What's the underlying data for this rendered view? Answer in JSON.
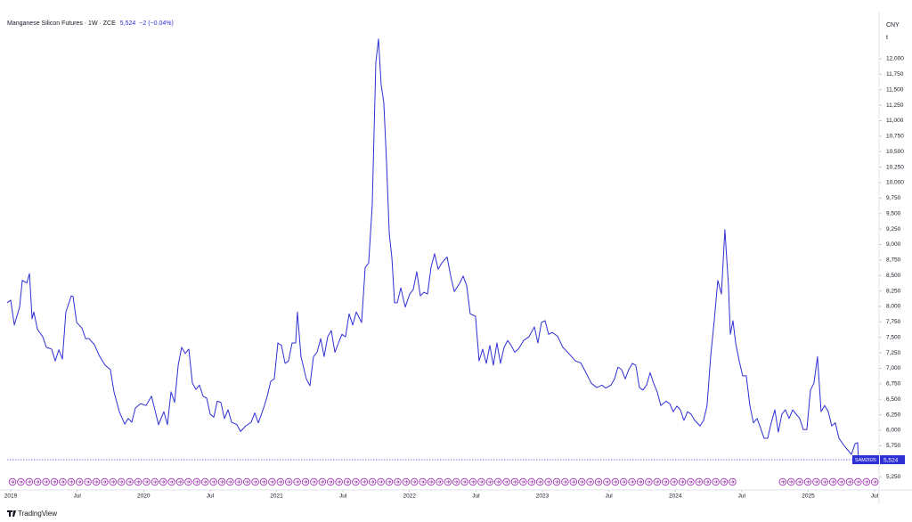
{
  "chart_data": {
    "type": "line",
    "title": "Manganese Silicon Futures · 1W · ZCE",
    "last_price": "5,524",
    "change": "−2 (−0.04%)",
    "symbol_tag": "SAM2025",
    "currency": "CNY",
    "unit": "t",
    "brand": "TradingView",
    "xlim": [
      2018.973,
      2025.533
    ],
    "ylim": [
      5065,
      12690
    ],
    "xticks": [
      {
        "value": 2019,
        "label": "2019"
      },
      {
        "value": 2019.5,
        "label": "Jul"
      },
      {
        "value": 2020,
        "label": "2020"
      },
      {
        "value": 2020.5,
        "label": "Jul"
      },
      {
        "value": 2021,
        "label": "2021"
      },
      {
        "value": 2021.5,
        "label": "Jul"
      },
      {
        "value": 2022,
        "label": "2022"
      },
      {
        "value": 2022.5,
        "label": "Jul"
      },
      {
        "value": 2023,
        "label": "2023"
      },
      {
        "value": 2023.5,
        "label": "Jul"
      },
      {
        "value": 2024,
        "label": "2024"
      },
      {
        "value": 2024.5,
        "label": "Jul"
      },
      {
        "value": 2025,
        "label": "2025"
      },
      {
        "value": 2025.5,
        "label": "Jul"
      }
    ],
    "yticks": [
      {
        "value": 5250,
        "label": "5,250"
      },
      {
        "value": 5500,
        "label": "5,500"
      },
      {
        "value": 5750,
        "label": "5,750"
      },
      {
        "value": 6000,
        "label": "6,000"
      },
      {
        "value": 6250,
        "label": "6,250"
      },
      {
        "value": 6500,
        "label": "6,500"
      },
      {
        "value": 6750,
        "label": "6,750"
      },
      {
        "value": 7000,
        "label": "7,000"
      },
      {
        "value": 7250,
        "label": "7,250"
      },
      {
        "value": 7500,
        "label": "7,500"
      },
      {
        "value": 7750,
        "label": "7,750"
      },
      {
        "value": 8000,
        "label": "8,000"
      },
      {
        "value": 8250,
        "label": "8,250"
      },
      {
        "value": 8500,
        "label": "8,500"
      },
      {
        "value": 8750,
        "label": "8,750"
      },
      {
        "value": 9000,
        "label": "9,000"
      },
      {
        "value": 9250,
        "label": "9,250"
      },
      {
        "value": 9500,
        "label": "9,500"
      },
      {
        "value": 9750,
        "label": "9,750"
      },
      {
        "value": 10000,
        "label": "10,000"
      },
      {
        "value": 10250,
        "label": "10,250"
      },
      {
        "value": 10500,
        "label": "10,500"
      },
      {
        "value": 10750,
        "label": "10,750"
      },
      {
        "value": 11000,
        "label": "11,000"
      },
      {
        "value": 11250,
        "label": "11,250"
      },
      {
        "value": 11500,
        "label": "11,500"
      },
      {
        "value": 11750,
        "label": "11,750"
      },
      {
        "value": 12000,
        "label": "12,000"
      }
    ],
    "grid": false,
    "x": [
      2018.973,
      2019.0,
      2019.027,
      2019.067,
      2019.087,
      2019.121,
      2019.141,
      2019.161,
      2019.174,
      2019.201,
      2019.241,
      2019.268,
      2019.308,
      2019.335,
      2019.362,
      2019.389,
      2019.415,
      2019.456,
      2019.469,
      2019.496,
      2019.536,
      2019.563,
      2019.59,
      2019.63,
      2019.67,
      2019.71,
      2019.75,
      2019.777,
      2019.817,
      2019.858,
      2019.884,
      2019.911,
      2019.938,
      2019.978,
      2020.018,
      2020.059,
      2020.085,
      2020.112,
      2020.152,
      2020.179,
      2020.206,
      2020.233,
      2020.26,
      2020.286,
      2020.313,
      2020.34,
      2020.367,
      2020.394,
      2020.42,
      2020.447,
      2020.474,
      2020.501,
      2020.528,
      2020.554,
      2020.581,
      2020.608,
      2020.635,
      2020.662,
      2020.702,
      2020.729,
      2020.769,
      2020.809,
      2020.836,
      2020.863,
      2020.903,
      2020.93,
      2020.956,
      2020.983,
      2021.01,
      2021.037,
      2021.064,
      2021.09,
      2021.117,
      2021.144,
      2021.157,
      2021.184,
      2021.224,
      2021.251,
      2021.278,
      2021.305,
      2021.332,
      2021.358,
      2021.385,
      2021.412,
      2021.439,
      2021.466,
      2021.492,
      2021.519,
      2021.546,
      2021.573,
      2021.6,
      2021.64,
      2021.667,
      2021.693,
      2021.72,
      2021.747,
      2021.767,
      2021.787,
      2021.807,
      2021.827,
      2021.848,
      2021.868,
      2021.888,
      2021.908,
      2021.935,
      2021.968,
      2022.002,
      2022.028,
      2022.055,
      2022.082,
      2022.109,
      2022.136,
      2022.162,
      2022.189,
      2022.216,
      2022.243,
      2022.283,
      2022.31,
      2022.337,
      2022.377,
      2022.404,
      2022.43,
      2022.457,
      2022.497,
      2022.524,
      2022.551,
      2022.578,
      2022.605,
      2022.631,
      2022.658,
      2022.685,
      2022.712,
      2022.739,
      2022.765,
      2022.792,
      2022.819,
      2022.859,
      2022.899,
      2022.94,
      2022.966,
      2022.993,
      2023.02,
      2023.047,
      2023.074,
      2023.114,
      2023.154,
      2023.208,
      2023.248,
      2023.288,
      2023.328,
      2023.368,
      2023.409,
      2023.449,
      2023.476,
      2023.516,
      2023.543,
      2023.569,
      2023.596,
      2023.623,
      2023.65,
      2023.677,
      2023.703,
      2023.73,
      2023.757,
      2023.784,
      2023.811,
      2023.837,
      2023.864,
      2023.891,
      2023.931,
      2023.958,
      2023.985,
      2024.012,
      2024.038,
      2024.065,
      2024.092,
      2024.119,
      2024.146,
      2024.186,
      2024.213,
      2024.239,
      2024.266,
      2024.293,
      2024.32,
      2024.347,
      2024.373,
      2024.4,
      2024.414,
      2024.434,
      2024.454,
      2024.481,
      2024.507,
      2024.534,
      2024.561,
      2024.588,
      2024.615,
      2024.641,
      2024.668,
      2024.695,
      2024.722,
      2024.749,
      2024.775,
      2024.802,
      2024.829,
      2024.856,
      2024.883,
      2024.909,
      2024.936,
      2024.963,
      2024.99,
      2025.017,
      2025.043,
      2025.07,
      2025.097,
      2025.124,
      2025.151,
      2025.177,
      2025.204,
      2025.231,
      2025.271,
      2025.298,
      2025.325,
      2025.352,
      2025.372,
      2025.378
    ],
    "series": [
      {
        "name": "SAM2025",
        "color": "#2f2fd6",
        "values": [
          8060,
          8100,
          7700,
          7990,
          8420,
          8380,
          8530,
          7800,
          7910,
          7630,
          7510,
          7340,
          7310,
          7120,
          7300,
          7150,
          7910,
          8170,
          8160,
          7740,
          7650,
          7480,
          7480,
          7380,
          7190,
          7050,
          6980,
          6620,
          6300,
          6100,
          6190,
          6130,
          6360,
          6430,
          6400,
          6550,
          6330,
          6090,
          6300,
          6090,
          6620,
          6450,
          7050,
          7340,
          7240,
          7310,
          6760,
          6660,
          6730,
          6550,
          6520,
          6260,
          6210,
          6470,
          6450,
          6190,
          6330,
          6130,
          6090,
          5980,
          6070,
          6130,
          6280,
          6120,
          6360,
          6550,
          6790,
          6830,
          7410,
          7370,
          7080,
          7120,
          7410,
          7410,
          7910,
          7190,
          6830,
          6720,
          7190,
          7260,
          7480,
          7190,
          7510,
          7610,
          7260,
          7410,
          7550,
          7510,
          7880,
          7700,
          7910,
          7740,
          8630,
          8700,
          9640,
          11940,
          12320,
          11580,
          11290,
          10360,
          9180,
          8780,
          8060,
          8060,
          8300,
          7990,
          8200,
          8270,
          8560,
          8170,
          8230,
          8200,
          8630,
          8850,
          8600,
          8700,
          8800,
          8490,
          8240,
          8370,
          8490,
          8340,
          7880,
          7840,
          7120,
          7310,
          7080,
          7370,
          7050,
          7410,
          7080,
          7340,
          7450,
          7370,
          7260,
          7310,
          7450,
          7510,
          7670,
          7410,
          7740,
          7770,
          7550,
          7580,
          7520,
          7340,
          7220,
          7120,
          7090,
          6930,
          6760,
          6690,
          6730,
          6680,
          6730,
          6830,
          7020,
          6980,
          6830,
          6980,
          7080,
          7050,
          6690,
          6650,
          6730,
          6930,
          6760,
          6620,
          6400,
          6470,
          6430,
          6300,
          6390,
          6330,
          6160,
          6300,
          6260,
          6160,
          6070,
          6160,
          6400,
          7190,
          7770,
          8420,
          8200,
          9240,
          8340,
          7550,
          7770,
          7410,
          7120,
          6880,
          6880,
          6400,
          6120,
          6190,
          6040,
          5870,
          5870,
          6120,
          6330,
          5970,
          6260,
          6330,
          6190,
          6330,
          6260,
          6190,
          6010,
          6010,
          6650,
          6760,
          7190,
          6300,
          6400,
          6300,
          6070,
          6120,
          5870,
          5750,
          5680,
          5610,
          5780,
          5800,
          5524
        ]
      }
    ]
  }
}
